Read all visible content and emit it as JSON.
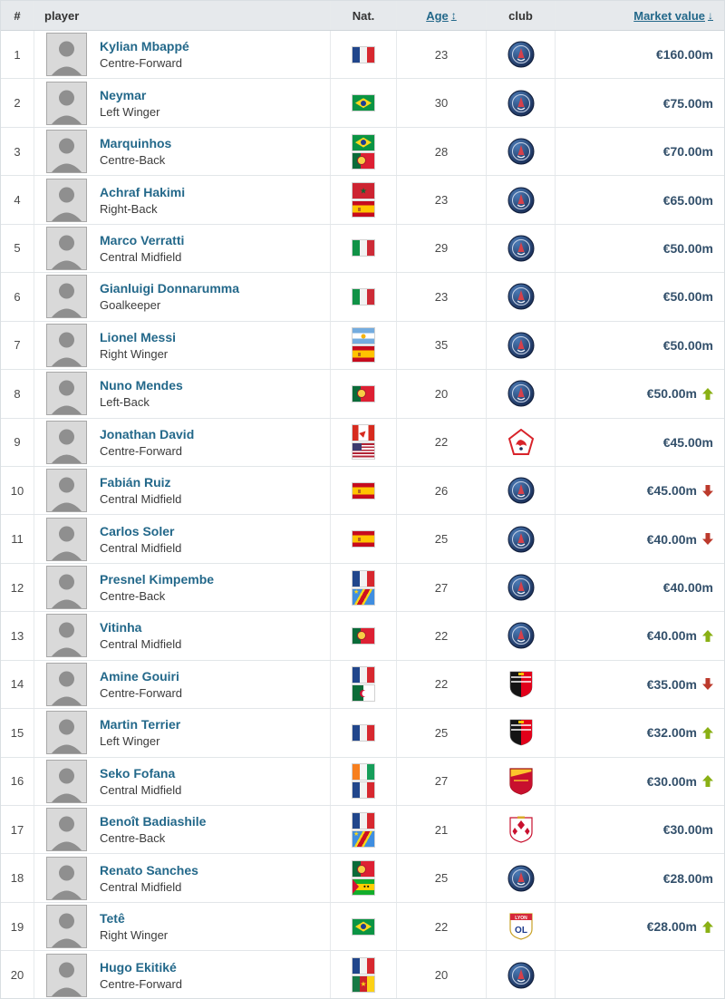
{
  "header": {
    "rank": "#",
    "player": "player",
    "nat": "Nat.",
    "age": "Age",
    "age_sort_icon": "↕",
    "club": "club",
    "value": "Market value",
    "value_sort_icon": "↓"
  },
  "colors": {
    "accent_link": "#23688a",
    "market_value": "#33506b",
    "trend_up": "#8ab015",
    "trend_down": "#bc3a2c",
    "header_bg": "#e6e9ec"
  },
  "icons": {
    "age_sort": "sort-both-icon",
    "value_sort": "sort-descending-icon"
  },
  "rows": [
    {
      "rank": "1",
      "name": "Kylian Mbappé",
      "position": "Centre-Forward",
      "flags": [
        "france"
      ],
      "age": "23",
      "club": "psg",
      "value": "€160.00m",
      "trend": null
    },
    {
      "rank": "2",
      "name": "Neymar",
      "position": "Left Winger",
      "flags": [
        "brazil"
      ],
      "age": "30",
      "club": "psg",
      "value": "€75.00m",
      "trend": null
    },
    {
      "rank": "3",
      "name": "Marquinhos",
      "position": "Centre-Back",
      "flags": [
        "brazil",
        "portugal"
      ],
      "age": "28",
      "club": "psg",
      "value": "€70.00m",
      "trend": null
    },
    {
      "rank": "4",
      "name": "Achraf Hakimi",
      "position": "Right-Back",
      "flags": [
        "morocco",
        "spain"
      ],
      "age": "23",
      "club": "psg",
      "value": "€65.00m",
      "trend": null
    },
    {
      "rank": "5",
      "name": "Marco Verratti",
      "position": "Central Midfield",
      "flags": [
        "italy"
      ],
      "age": "29",
      "club": "psg",
      "value": "€50.00m",
      "trend": null
    },
    {
      "rank": "6",
      "name": "Gianluigi Donnarumma",
      "position": "Goalkeeper",
      "flags": [
        "italy"
      ],
      "age": "23",
      "club": "psg",
      "value": "€50.00m",
      "trend": null
    },
    {
      "rank": "7",
      "name": "Lionel Messi",
      "position": "Right Winger",
      "flags": [
        "argentina",
        "spain"
      ],
      "age": "35",
      "club": "psg",
      "value": "€50.00m",
      "trend": null
    },
    {
      "rank": "8",
      "name": "Nuno Mendes",
      "position": "Left-Back",
      "flags": [
        "portugal"
      ],
      "age": "20",
      "club": "psg",
      "value": "€50.00m",
      "trend": "up"
    },
    {
      "rank": "9",
      "name": "Jonathan David",
      "position": "Centre-Forward",
      "flags": [
        "canada",
        "usa"
      ],
      "age": "22",
      "club": "lille",
      "value": "€45.00m",
      "trend": null
    },
    {
      "rank": "10",
      "name": "Fabián Ruiz",
      "position": "Central Midfield",
      "flags": [
        "spain"
      ],
      "age": "26",
      "club": "psg",
      "value": "€45.00m",
      "trend": "down"
    },
    {
      "rank": "11",
      "name": "Carlos Soler",
      "position": "Central Midfield",
      "flags": [
        "spain"
      ],
      "age": "25",
      "club": "psg",
      "value": "€40.00m",
      "trend": "down"
    },
    {
      "rank": "12",
      "name": "Presnel Kimpembe",
      "position": "Centre-Back",
      "flags": [
        "france",
        "drcongo"
      ],
      "age": "27",
      "club": "psg",
      "value": "€40.00m",
      "trend": null
    },
    {
      "rank": "13",
      "name": "Vitinha",
      "position": "Central Midfield",
      "flags": [
        "portugal"
      ],
      "age": "22",
      "club": "psg",
      "value": "€40.00m",
      "trend": "up"
    },
    {
      "rank": "14",
      "name": "Amine Gouiri",
      "position": "Centre-Forward",
      "flags": [
        "france",
        "algeria"
      ],
      "age": "22",
      "club": "rennes",
      "value": "€35.00m",
      "trend": "down"
    },
    {
      "rank": "15",
      "name": "Martin Terrier",
      "position": "Left Winger",
      "flags": [
        "france"
      ],
      "age": "25",
      "club": "rennes",
      "value": "€32.00m",
      "trend": "up"
    },
    {
      "rank": "16",
      "name": "Seko Fofana",
      "position": "Central Midfield",
      "flags": [
        "ivory-coast",
        "france"
      ],
      "age": "27",
      "club": "lens",
      "value": "€30.00m",
      "trend": "up"
    },
    {
      "rank": "17",
      "name": "Benoît Badiashile",
      "position": "Centre-Back",
      "flags": [
        "france",
        "drcongo"
      ],
      "age": "21",
      "club": "monaco",
      "value": "€30.00m",
      "trend": null
    },
    {
      "rank": "18",
      "name": "Renato Sanches",
      "position": "Central Midfield",
      "flags": [
        "portugal",
        "sao-tome"
      ],
      "age": "25",
      "club": "psg",
      "value": "€28.00m",
      "trend": null
    },
    {
      "rank": "19",
      "name": "Tetê",
      "position": "Right Winger",
      "flags": [
        "brazil"
      ],
      "age": "22",
      "club": "lyon",
      "value": "€28.00m",
      "trend": "up"
    },
    {
      "rank": "20",
      "name": "Hugo Ekitiké",
      "position": "Centre-Forward",
      "flags": [
        "france",
        "cameroon"
      ],
      "age": "20",
      "club": "psg",
      "value": "",
      "trend": null
    }
  ]
}
